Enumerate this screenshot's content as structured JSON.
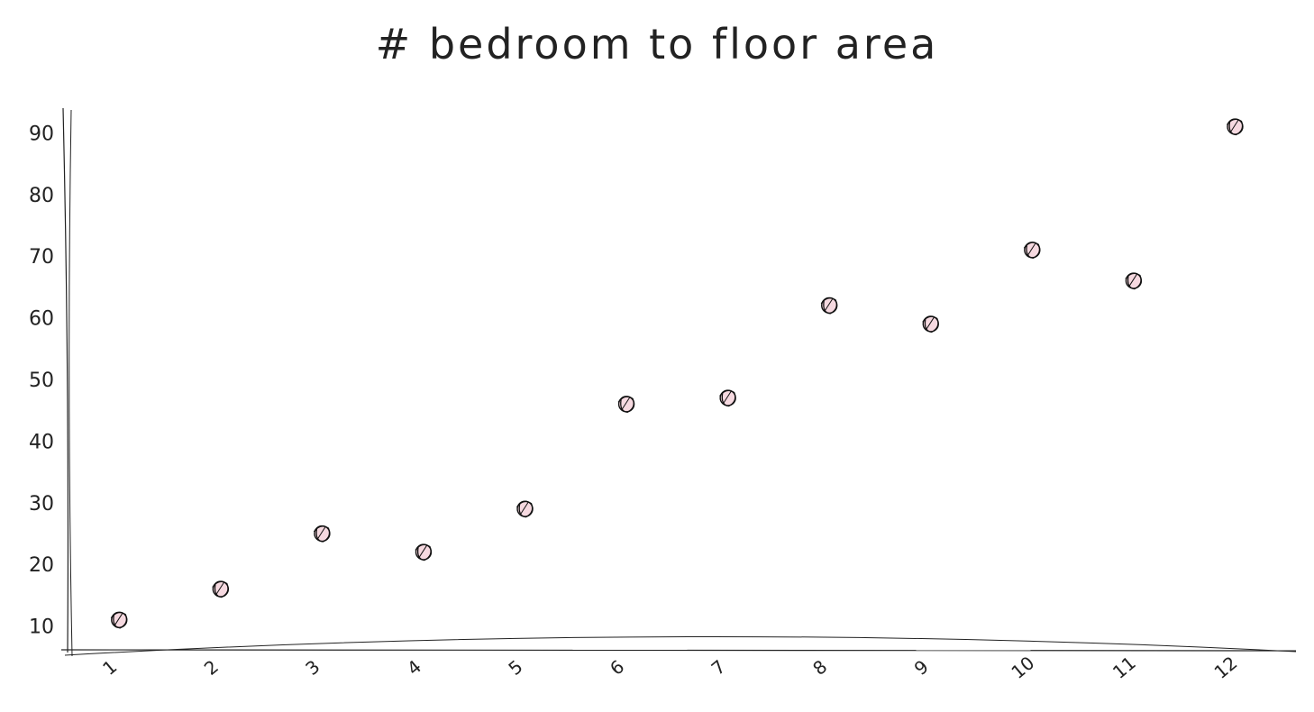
{
  "chart_data": {
    "type": "scatter",
    "title": "# bedroom to floor area",
    "xlabel": "",
    "ylabel": "",
    "x": [
      1,
      2,
      3,
      4,
      5,
      6,
      7,
      8,
      9,
      10,
      11,
      12
    ],
    "y": [
      11,
      16,
      25,
      22,
      29,
      46,
      47,
      62,
      59,
      71,
      66,
      91
    ],
    "xticks": [
      "1",
      "2",
      "3",
      "4",
      "5",
      "6",
      "7",
      "8",
      "9",
      "10",
      "11",
      "12"
    ],
    "yticks": [
      "10",
      "20",
      "30",
      "40",
      "50",
      "60",
      "70",
      "80",
      "90"
    ],
    "xlim": [
      0.5,
      12.6
    ],
    "ylim": [
      6,
      94
    ],
    "grid": false,
    "legend": "none",
    "colors": {
      "axis": "#222222",
      "marker_stroke": "#111111",
      "marker_fill": "#f6d9e0"
    }
  }
}
